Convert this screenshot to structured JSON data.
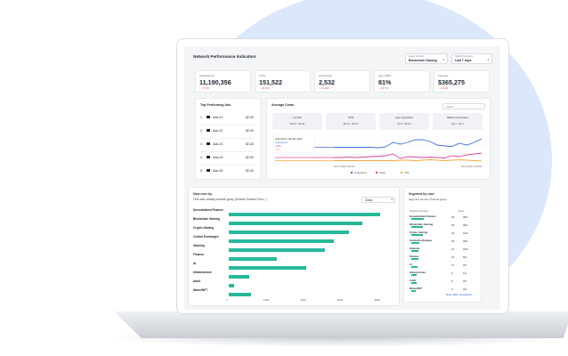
{
  "header": {
    "title": "Network Performance Indicators",
    "vertical_label": "Select Vertical",
    "vertical_value": "Blockchain Gaming",
    "timeframe_label": "Select Timeframe",
    "timeframe_value": "Last 7 days"
  },
  "kpis": [
    {
      "label": "Impressions",
      "value": "11,190,356",
      "change": "↓ -17.6%"
    },
    {
      "label": "Visits",
      "value": "151,522",
      "change": "↓ -26.6%"
    },
    {
      "label": "Conversion",
      "value": "2,532",
      "change": "↓ -11.82%"
    },
    {
      "label": "Avg. CPM",
      "value": "81%",
      "change": "↓ -18.7%"
    },
    {
      "label": "Volumes",
      "value": "$365,275",
      "change": "↓ -3.44%"
    }
  ],
  "top_ads": {
    "title": "Top Performing Ads",
    "items": [
      {
        "rank": "1",
        "name": "Ads-01",
        "amount": "$2.00"
      },
      {
        "rank": "2",
        "name": "Ads-02",
        "amount": "$2.00"
      },
      {
        "rank": "3",
        "name": "Ads-03",
        "amount": "$2.00"
      },
      {
        "rank": "4",
        "name": "Ads-04",
        "amount": "$2.00"
      },
      {
        "rank": "5",
        "name": "Ads-05",
        "amount": "$2.00"
      }
    ]
  },
  "avg_costs": {
    "title": "Average Costs",
    "search_placeholder": "Search",
    "metrics": [
      {
        "title": "Ad click",
        "value": "$0.00 - $0.00"
      },
      {
        "title": "CPM",
        "value": "$0.00 - $0.00"
      },
      {
        "title": "User acquisition",
        "value": "$3.6 - $5.00"
      },
      {
        "title": "Wallet Connections",
        "value": "$2.1 - $3.5"
      }
    ],
    "tooltip": {
      "date": "4:00 AM Fri, Nov 20, 2023",
      "line1": "Impressions",
      "line2": "Clicks",
      "line3": "CTR"
    },
    "x_start": "Nov 13 2023 4:00 PM",
    "x_end": "Nov 20 2023 4:00 PM",
    "legend": [
      "Impressions",
      "Clicks",
      "CTR"
    ],
    "colors": {
      "impressions": "#3b6fd8",
      "clicks": "#d6449a",
      "ctr": "#f0a83a"
    },
    "chart_data": {
      "type": "line",
      "x": [
        0,
        1,
        2,
        3,
        4,
        5,
        6,
        7,
        8,
        9,
        10,
        11,
        12,
        13,
        14,
        15,
        16,
        17,
        18,
        19,
        20
      ],
      "series": [
        {
          "name": "Impressions",
          "values": [
            55,
            55,
            55,
            55,
            55,
            55,
            54,
            56,
            66,
            62,
            66,
            72,
            72,
            68,
            60,
            58,
            57,
            64,
            60,
            66,
            74
          ]
        },
        {
          "name": "Clicks",
          "values": [
            32,
            32,
            33,
            32,
            33,
            34,
            35,
            36,
            40,
            30,
            34,
            33,
            32,
            33,
            32,
            31,
            36,
            34,
            38,
            40,
            42
          ]
        },
        {
          "name": "CTR",
          "values": [
            25,
            25,
            25,
            25,
            25,
            25,
            25,
            25,
            25,
            26,
            26,
            25,
            26,
            27,
            26,
            25,
            26,
            27,
            26,
            25,
            24
          ]
        }
      ]
    }
  },
  "new_users": {
    "title": "New user by",
    "subtitle": "First user primary channel group (Default Channel Grou...)",
    "dropdown": "Clicks",
    "chart_data": {
      "type": "bar",
      "categories": [
        "Decentralized Finance",
        "Blockchain Gaming",
        "Crypto-Gaming",
        "Central Exchanges",
        "iGaming",
        "Finance",
        "AI",
        "Infrastructure",
        "Adult",
        "Meme/NFT"
      ],
      "values": [
        820,
        720,
        650,
        570,
        520,
        260,
        420,
        110,
        30,
        120
      ],
      "xlim": [
        0,
        900
      ],
      "ticks": [
        "0",
        "200K",
        "400K",
        "600K",
        "800K"
      ]
    }
  },
  "segments": {
    "title": "Segment by user",
    "subtitle": "Segment primary channel group",
    "col_name": "Segment primary",
    "col_count": "Views",
    "rows": [
      {
        "name": "Decentralized Finance",
        "count": "49",
        "pct": "28%"
      },
      {
        "name": "Blockchain Gaming",
        "count": "45",
        "pct": "36%"
      },
      {
        "name": "Crypto Gaming",
        "count": "43",
        "pct": "12%"
      },
      {
        "name": "Central Exchanges",
        "count": "25",
        "pct": "29%"
      },
      {
        "name": "iGaming",
        "count": "21",
        "pct": "24%"
      },
      {
        "name": "Finance",
        "count": "19",
        "pct": "8%"
      },
      {
        "name": "AI",
        "count": "17",
        "pct": "2%"
      },
      {
        "name": "Infrastructure",
        "count": "9",
        "pct": "1%"
      },
      {
        "name": "Adult",
        "count": "8",
        "pct": "2%"
      },
      {
        "name": "Meme/NFT",
        "count": "6",
        "pct": "3%"
      }
    ],
    "link": "View traffic acquisition →"
  }
}
